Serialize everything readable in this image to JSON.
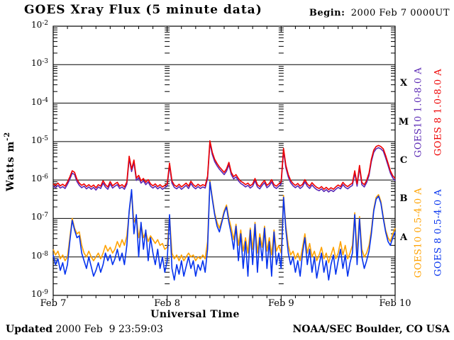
{
  "page": {
    "title": "GOES Xray Flux (5 minute data)",
    "begin_label": "Begin:",
    "begin_value": "2000 Feb 7 0000UT"
  },
  "axes": {
    "y_title": "Watts m",
    "y_title_exponent": "-2",
    "x_title": "Universal Time"
  },
  "footer": {
    "updated_label": "Updated",
    "updated_value": " 2000 Feb  9 23:59:03",
    "credit": "NOAA/SEC Boulder, CO USA"
  },
  "chart_data": {
    "type": "line",
    "title": "GOES Xray Flux (5 minute data)",
    "begin": "2000 Feb 7 0000UT",
    "xlabel": "Universal Time",
    "ylabel": "Watts m^-2",
    "y_scale": "log10",
    "y_log_top": -2,
    "y_log_bottom": -9,
    "y_tick_exponents": [
      -2,
      -3,
      -4,
      -5,
      -6,
      -7,
      -8,
      -9
    ],
    "x_range_hours": 72,
    "x_minor_tick_hours": 3,
    "x_day_ticks": [
      {
        "label": "Feb 7",
        "hour": 0
      },
      {
        "label": "Feb 8",
        "hour": 24
      },
      {
        "label": "Feb 9",
        "hour": 48
      },
      {
        "label": "Feb 10",
        "hour": 72
      }
    ],
    "flux_classes": [
      {
        "label": "X",
        "center_log10": -3.5
      },
      {
        "label": "M",
        "center_log10": -4.5
      },
      {
        "label": "C",
        "center_log10": -5.5
      },
      {
        "label": "B",
        "center_log10": -6.5
      },
      {
        "label": "A",
        "center_log10": -7.5
      }
    ],
    "grid": "horizontal-decades",
    "sample_step_hours": 0.5,
    "series": [
      {
        "name": "GOES10 1.0-8.0 A",
        "color": "#5a28b4",
        "points_log10": [
          -6.16,
          -6.2,
          -6.14,
          -6.21,
          -6.17,
          -6.22,
          -6.11,
          -5.98,
          -5.82,
          -5.86,
          -6.04,
          -6.14,
          -6.2,
          -6.16,
          -6.23,
          -6.18,
          -6.24,
          -6.19,
          -6.26,
          -6.18,
          -6.22,
          -6.08,
          -6.18,
          -6.24,
          -6.1,
          -6.21,
          -6.16,
          -6.12,
          -6.22,
          -6.18,
          -6.24,
          -6.11,
          -5.44,
          -5.78,
          -5.54,
          -6.01,
          -5.94,
          -6.08,
          -6.02,
          -6.12,
          -6.05,
          -6.16,
          -6.21,
          -6.16,
          -6.23,
          -6.18,
          -6.24,
          -6.2,
          -6.16,
          -5.62,
          -6.08,
          -6.19,
          -6.23,
          -6.17,
          -6.24,
          -6.19,
          -6.14,
          -6.22,
          -6.09,
          -6.18,
          -6.23,
          -6.17,
          -6.22,
          -6.18,
          -6.21,
          -5.96,
          -5.04,
          -5.34,
          -5.52,
          -5.63,
          -5.72,
          -5.79,
          -5.86,
          -5.77,
          -5.6,
          -5.86,
          -5.97,
          -5.92,
          -6.02,
          -6.09,
          -6.13,
          -6.18,
          -6.14,
          -6.21,
          -6.16,
          -6.02,
          -6.18,
          -6.23,
          -6.14,
          -6.07,
          -6.2,
          -6.15,
          -6.05,
          -6.18,
          -6.22,
          -6.16,
          -6.11,
          -5.24,
          -5.68,
          -5.92,
          -6.07,
          -6.15,
          -6.2,
          -6.15,
          -6.22,
          -6.17,
          -6.05,
          -6.16,
          -6.22,
          -6.13,
          -6.2,
          -6.25,
          -6.28,
          -6.23,
          -6.3,
          -6.25,
          -6.31,
          -6.26,
          -6.3,
          -6.24,
          -6.19,
          -6.23,
          -6.12,
          -6.19,
          -6.23,
          -6.18,
          -6.14,
          -5.82,
          -6.16,
          -5.68,
          -6.12,
          -6.18,
          -6.07,
          -5.88,
          -5.52,
          -5.28,
          -5.19,
          -5.16,
          -5.19,
          -5.25,
          -5.42,
          -5.62,
          -5.82,
          -5.95,
          -6.02
        ]
      },
      {
        "name": "GOES10 0.5-4.0 A",
        "color": "#ffa200",
        "points_log10": [
          -7.8,
          -7.95,
          -7.85,
          -8.05,
          -7.95,
          -8.1,
          -8.0,
          -7.5,
          -7.0,
          -7.25,
          -7.4,
          -7.35,
          -7.7,
          -7.9,
          -8.0,
          -7.85,
          -8.0,
          -8.1,
          -8.0,
          -7.9,
          -8.05,
          -7.9,
          -7.7,
          -7.85,
          -7.75,
          -7.9,
          -7.8,
          -7.6,
          -7.75,
          -7.55,
          -7.7,
          -7.45,
          -6.85,
          -6.3,
          -7.1,
          -6.95,
          -7.5,
          -7.15,
          -7.5,
          -7.35,
          -7.6,
          -7.45,
          -7.55,
          -7.65,
          -7.55,
          -7.7,
          -7.65,
          -7.8,
          -7.75,
          -6.95,
          -7.9,
          -8.05,
          -7.95,
          -8.1,
          -7.95,
          -8.1,
          -8.0,
          -7.9,
          -8.0,
          -7.95,
          -8.1,
          -8.0,
          -8.05,
          -7.95,
          -8.05,
          -7.6,
          -6.02,
          -6.45,
          -6.85,
          -7.1,
          -7.25,
          -7.05,
          -6.8,
          -6.65,
          -7.0,
          -7.25,
          -7.55,
          -7.15,
          -7.7,
          -7.3,
          -7.85,
          -7.5,
          -7.9,
          -7.25,
          -7.8,
          -7.1,
          -7.9,
          -7.4,
          -7.75,
          -7.2,
          -7.85,
          -7.5,
          -7.95,
          -7.3,
          -7.85,
          -7.7,
          -7.9,
          -6.4,
          -7.2,
          -7.7,
          -7.95,
          -7.85,
          -8.05,
          -7.9,
          -8.1,
          -7.75,
          -7.4,
          -7.9,
          -7.65,
          -8.0,
          -7.85,
          -8.1,
          -7.95,
          -7.75,
          -8.05,
          -7.9,
          -8.15,
          -7.95,
          -7.75,
          -8.05,
          -7.9,
          -7.6,
          -7.95,
          -7.7,
          -8.05,
          -7.9,
          -7.7,
          -6.85,
          -7.9,
          -6.95,
          -7.8,
          -8.0,
          -7.9,
          -7.7,
          -7.3,
          -6.75,
          -6.45,
          -6.38,
          -6.55,
          -6.95,
          -7.3,
          -7.5,
          -7.6,
          -7.4,
          -7.25
        ]
      },
      {
        "name": "GOES 8 0.5-4.0 A",
        "color": "#0533ee",
        "points_log10": [
          -7.95,
          -8.2,
          -8.05,
          -8.35,
          -8.15,
          -8.45,
          -8.2,
          -7.6,
          -7.05,
          -7.3,
          -7.5,
          -7.45,
          -7.9,
          -8.1,
          -8.3,
          -8.0,
          -8.25,
          -8.5,
          -8.35,
          -8.15,
          -8.4,
          -8.2,
          -7.9,
          -8.1,
          -7.95,
          -8.2,
          -8.05,
          -7.8,
          -8.1,
          -7.9,
          -8.2,
          -7.7,
          -6.8,
          -6.25,
          -7.4,
          -6.9,
          -8.0,
          -7.1,
          -7.8,
          -7.3,
          -8.1,
          -7.5,
          -7.9,
          -8.2,
          -7.8,
          -8.3,
          -8.0,
          -8.4,
          -8.1,
          -6.9,
          -8.3,
          -8.6,
          -8.2,
          -8.45,
          -8.1,
          -8.5,
          -8.25,
          -8.0,
          -8.3,
          -8.1,
          -8.5,
          -8.2,
          -8.35,
          -8.1,
          -8.4,
          -7.8,
          -6.05,
          -6.5,
          -6.9,
          -7.2,
          -7.35,
          -7.1,
          -6.85,
          -6.7,
          -7.1,
          -7.4,
          -7.8,
          -7.2,
          -8.1,
          -7.4,
          -8.3,
          -7.6,
          -8.5,
          -7.3,
          -8.2,
          -7.15,
          -8.4,
          -7.5,
          -8.1,
          -7.25,
          -8.3,
          -7.6,
          -8.5,
          -7.35,
          -8.2,
          -7.9,
          -8.3,
          -6.45,
          -7.3,
          -7.9,
          -8.2,
          -8.0,
          -8.4,
          -8.1,
          -8.5,
          -7.9,
          -7.5,
          -8.2,
          -7.8,
          -8.4,
          -8.0,
          -8.55,
          -8.2,
          -7.9,
          -8.4,
          -8.1,
          -8.6,
          -8.2,
          -7.95,
          -8.45,
          -8.1,
          -7.8,
          -8.3,
          -7.95,
          -8.5,
          -8.15,
          -7.9,
          -6.9,
          -8.2,
          -7.0,
          -8.0,
          -8.3,
          -8.1,
          -7.85,
          -7.4,
          -6.8,
          -6.5,
          -6.42,
          -6.6,
          -7.0,
          -7.35,
          -7.6,
          -7.7,
          -7.5,
          -7.35
        ]
      },
      {
        "name": "GOES 8 1.0-8.0 A",
        "color": "#ee0000",
        "points_log10": [
          -6.1,
          -6.14,
          -6.08,
          -6.15,
          -6.11,
          -6.16,
          -6.05,
          -5.92,
          -5.76,
          -5.8,
          -5.98,
          -6.08,
          -6.14,
          -6.1,
          -6.17,
          -6.12,
          -6.18,
          -6.13,
          -6.2,
          -6.12,
          -6.16,
          -6.02,
          -6.12,
          -6.18,
          -6.04,
          -6.15,
          -6.1,
          -6.06,
          -6.16,
          -6.12,
          -6.18,
          -6.05,
          -5.38,
          -5.72,
          -5.48,
          -5.95,
          -5.88,
          -6.02,
          -5.96,
          -6.06,
          -5.99,
          -6.1,
          -6.15,
          -6.1,
          -6.17,
          -6.12,
          -6.18,
          -6.14,
          -6.1,
          -5.56,
          -6.02,
          -6.13,
          -6.17,
          -6.11,
          -6.18,
          -6.13,
          -6.08,
          -6.16,
          -6.03,
          -6.12,
          -6.17,
          -6.11,
          -6.16,
          -6.12,
          -6.15,
          -5.9,
          -4.98,
          -5.28,
          -5.46,
          -5.57,
          -5.66,
          -5.73,
          -5.8,
          -5.71,
          -5.54,
          -5.8,
          -5.91,
          -5.86,
          -5.96,
          -6.03,
          -6.07,
          -6.12,
          -6.08,
          -6.15,
          -6.1,
          -5.96,
          -6.12,
          -6.17,
          -6.08,
          -6.01,
          -6.14,
          -6.09,
          -5.99,
          -6.12,
          -6.16,
          -6.1,
          -6.05,
          -5.18,
          -5.62,
          -5.86,
          -6.01,
          -6.09,
          -6.14,
          -6.09,
          -6.16,
          -6.11,
          -5.99,
          -6.1,
          -6.16,
          -6.07,
          -6.14,
          -6.19,
          -6.22,
          -6.17,
          -6.24,
          -6.19,
          -6.25,
          -6.2,
          -6.24,
          -6.18,
          -6.13,
          -6.17,
          -6.06,
          -6.13,
          -6.17,
          -6.12,
          -6.08,
          -5.76,
          -6.1,
          -5.62,
          -6.06,
          -6.12,
          -6.01,
          -5.82,
          -5.46,
          -5.22,
          -5.13,
          -5.1,
          -5.13,
          -5.19,
          -5.36,
          -5.56,
          -5.76,
          -5.89,
          -5.96
        ]
      }
    ],
    "legend": [
      {
        "label": "GOES10 1.0-8.0 A",
        "color": "#5a28b4",
        "column": 0,
        "group": "long"
      },
      {
        "label": "GOES 8 1.0-8.0 A",
        "color": "#ee0000",
        "column": 1,
        "group": "long"
      },
      {
        "label": "GOES10 0.5-4.0 A",
        "color": "#ffa200",
        "column": 0,
        "group": "short"
      },
      {
        "label": "GOES 8 0.5-4.0 A",
        "color": "#0533ee",
        "column": 1,
        "group": "short"
      }
    ]
  }
}
